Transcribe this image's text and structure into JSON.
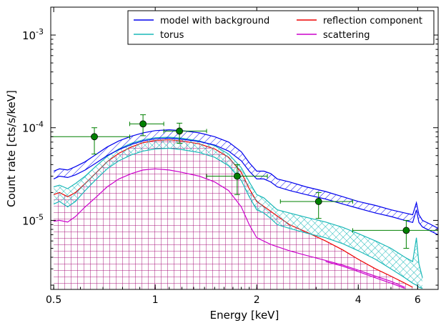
{
  "chart_data": {
    "type": "line",
    "xlabel": "Energy [keV]",
    "ylabel": "Count rate [cts/s/keV]",
    "xscale": "log",
    "yscale": "log",
    "xlim": [
      0.49,
      6.9
    ],
    "ylim": [
      1.8e-06,
      0.002
    ],
    "x_ticks": [
      {
        "value": 0.5,
        "label": "0.5"
      },
      {
        "value": 1,
        "label": "1"
      },
      {
        "value": 2,
        "label": "2"
      },
      {
        "value": 4,
        "label": "4"
      },
      {
        "value": 6,
        "label": "6"
      }
    ],
    "y_ticks": [
      {
        "value": 1e-05,
        "base": "10",
        "exp": "-5"
      },
      {
        "value": 0.0001,
        "base": "10",
        "exp": "-4"
      },
      {
        "value": 0.001,
        "base": "10",
        "exp": "-3"
      }
    ],
    "legend": {
      "location": "top-right",
      "columns": 2,
      "entries": [
        {
          "label": "model with background",
          "color": "#0000ee"
        },
        {
          "label": "torus",
          "color": "#1ab8b8"
        },
        {
          "label": "reflection component",
          "color": "#ee0000"
        },
        {
          "label": "scattering",
          "color": "#cc00cc"
        }
      ]
    },
    "series": [
      {
        "name": "model with background",
        "color": "#0000ee",
        "hatch": "diagonal",
        "x": [
          0.5,
          0.52,
          0.55,
          0.58,
          0.62,
          0.67,
          0.72,
          0.78,
          0.85,
          0.92,
          1.0,
          1.1,
          1.2,
          1.35,
          1.5,
          1.65,
          1.8,
          1.9,
          2.0,
          2.1,
          2.2,
          2.3,
          2.5,
          2.8,
          3.2,
          3.6,
          4.0,
          4.5,
          5.0,
          5.5,
          5.8,
          5.95,
          6.05,
          6.2,
          6.5,
          6.9
        ],
        "lower": [
          2.8e-05,
          3e-05,
          2.9e-05,
          3.1e-05,
          3.5e-05,
          4.2e-05,
          5e-05,
          5.8e-05,
          6.6e-05,
          7.2e-05,
          7.6e-05,
          7.7e-05,
          7.5e-05,
          7.1e-05,
          6.5e-05,
          5.6e-05,
          4.4e-05,
          3.4e-05,
          2.8e-05,
          2.8e-05,
          2.6e-05,
          2.3e-05,
          2.1e-05,
          1.9e-05,
          1.7e-05,
          1.5e-05,
          1.35e-05,
          1.2e-05,
          1.1e-05,
          1e-05,
          9.5e-06,
          1.3e-05,
          9.5e-06,
          8.5e-06,
          7.8e-06,
          7e-06
        ],
        "upper": [
          3.4e-05,
          3.6e-05,
          3.5e-05,
          3.8e-05,
          4.3e-05,
          5.2e-05,
          6.2e-05,
          7.2e-05,
          8.1e-05,
          8.8e-05,
          9.3e-05,
          9.5e-05,
          9.3e-05,
          8.8e-05,
          8e-05,
          7e-05,
          5.5e-05,
          4.2e-05,
          3.4e-05,
          3.4e-05,
          3.2e-05,
          2.8e-05,
          2.6e-05,
          2.3e-05,
          2.05e-05,
          1.8e-05,
          1.6e-05,
          1.45e-05,
          1.3e-05,
          1.2e-05,
          1.15e-05,
          1.55e-05,
          1.15e-05,
          1e-05,
          9.2e-06,
          8.2e-06
        ]
      },
      {
        "name": "torus",
        "color": "#1ab8b8",
        "hatch": "cross",
        "x": [
          0.5,
          0.52,
          0.55,
          0.58,
          0.62,
          0.67,
          0.72,
          0.78,
          0.85,
          0.92,
          1.0,
          1.1,
          1.2,
          1.35,
          1.5,
          1.65,
          1.8,
          1.9,
          2.0,
          2.1,
          2.2,
          2.3,
          2.5,
          2.8,
          3.2,
          3.6,
          4.0,
          4.5,
          5.0,
          5.5,
          5.8,
          5.95,
          6.05,
          6.2
        ],
        "lower": [
          1.5e-05,
          1.6e-05,
          1.4e-05,
          1.6e-05,
          2.1e-05,
          2.8e-05,
          3.6e-05,
          4.4e-05,
          5.1e-05,
          5.6e-05,
          5.9e-05,
          6e-05,
          5.8e-05,
          5.4e-05,
          4.8e-05,
          3.9e-05,
          2.7e-05,
          1.8e-05,
          1.3e-05,
          1.2e-05,
          1.05e-05,
          9e-06,
          8.2e-06,
          7.3e-06,
          6.5e-06,
          5.6e-06,
          4.7e-06,
          3.8e-06,
          3e-06,
          2.4e-06,
          2.1e-06,
          2e-06,
          1.9e-06,
          1.85e-06
        ],
        "upper": [
          2.3e-05,
          2.4e-05,
          2.2e-05,
          2.5e-05,
          3e-05,
          3.9e-05,
          4.9e-05,
          5.9e-05,
          6.8e-05,
          7.4e-05,
          7.8e-05,
          7.9e-05,
          7.7e-05,
          7.2e-05,
          6.4e-05,
          5.2e-05,
          3.7e-05,
          2.6e-05,
          1.9e-05,
          1.75e-05,
          1.5e-05,
          1.3e-05,
          1.2e-05,
          1.08e-05,
          9.6e-06,
          8.4e-06,
          7.2e-06,
          6e-06,
          5e-06,
          4e-06,
          3.6e-06,
          6.5e-06,
          3.4e-06,
          2.4e-06
        ]
      },
      {
        "name": "reflection component",
        "color": "#ee0000",
        "hatch": "grid",
        "x": [
          0.5,
          0.52,
          0.55,
          0.58,
          0.62,
          0.67,
          0.72,
          0.78,
          0.85,
          0.92,
          1.0,
          1.1,
          1.2,
          1.35,
          1.5,
          1.65,
          1.8,
          1.9,
          2.0,
          2.2,
          2.5,
          2.8,
          3.2,
          3.6,
          4.0,
          4.5,
          5.0,
          5.5,
          5.8
        ],
        "lower": [
          1.8e-06,
          1.8e-06,
          1.8e-06,
          1.8e-06,
          1.8e-06,
          1.8e-06,
          1.8e-06,
          1.8e-06,
          1.8e-06,
          1.8e-06,
          1.8e-06,
          1.8e-06,
          1.8e-06,
          1.8e-06,
          1.8e-06,
          1.8e-06,
          1.8e-06,
          1.8e-06,
          1.8e-06,
          1.8e-06,
          1.8e-06,
          1.8e-06,
          1.8e-06,
          1.8e-06,
          1.8e-06,
          1.8e-06,
          1.8e-06,
          1.8e-06,
          1.8e-06
        ],
        "upper": [
          1.9e-05,
          2e-05,
          1.8e-05,
          2e-05,
          2.5e-05,
          3.3e-05,
          4.3e-05,
          5.3e-05,
          6.2e-05,
          6.9e-05,
          7.3e-05,
          7.4e-05,
          7.2e-05,
          6.7e-05,
          5.9e-05,
          4.8e-05,
          3.3e-05,
          2.2e-05,
          1.6e-05,
          1.25e-05,
          9e-06,
          7.5e-06,
          6e-06,
          4.8e-06,
          3.8e-06,
          3e-06,
          2.5e-06,
          2.1e-06,
          1.9e-06
        ]
      },
      {
        "name": "scattering",
        "color": "#cc00cc",
        "x": [
          0.5,
          0.52,
          0.55,
          0.58,
          0.62,
          0.67,
          0.72,
          0.78,
          0.85,
          0.92,
          1.0,
          1.1,
          1.2,
          1.35,
          1.5,
          1.65,
          1.8,
          1.9,
          2.0,
          2.2,
          2.5,
          2.8,
          3.2,
          3.6,
          4.0,
          4.5,
          5.0,
          5.5
        ],
        "y": [
          9.8e-06,
          1e-05,
          9.6e-06,
          1.1e-05,
          1.4e-05,
          1.8e-05,
          2.3e-05,
          2.8e-05,
          3.2e-05,
          3.5e-05,
          3.6e-05,
          3.5e-05,
          3.3e-05,
          3e-05,
          2.6e-05,
          2.1e-05,
          1.4e-05,
          9e-06,
          6.5e-06,
          5.5e-06,
          4.7e-06,
          4.2e-06,
          3.7e-06,
          3.3e-06,
          2.9e-06,
          2.5e-06,
          2.2e-06,
          1.9e-06
        ],
        "lower_outline": [
          1.8e-06,
          1.8e-06,
          1.8e-06,
          1.8e-06,
          1.8e-06,
          1.8e-06,
          1.8e-06,
          1.8e-06,
          1.8e-06,
          1.8e-06,
          1.8e-06,
          1.8e-06,
          1.8e-06,
          1.8e-06,
          1.8e-06,
          1.8e-06,
          1.8e-06,
          1.8e-06,
          1.8e-06,
          1.8e-06,
          1.8e-06,
          1.8e-06,
          3.6e-06,
          3.2e-06,
          2.8e-06,
          2.4e-06,
          2.1e-06,
          1.85e-06
        ]
      }
    ],
    "data_points": {
      "color": "#008000",
      "points": [
        {
          "x": 0.66,
          "y": 8e-05,
          "xerr": [
            0.49,
            0.84
          ],
          "yerr": [
            5.2e-05,
            0.0001
          ]
        },
        {
          "x": 0.92,
          "y": 0.00011,
          "xerr": [
            0.84,
            1.06
          ],
          "yerr": [
            8.2e-05,
            0.000138
          ]
        },
        {
          "x": 1.18,
          "y": 9.2e-05,
          "xerr": [
            1.06,
            1.42
          ],
          "yerr": [
            6.8e-05,
            0.000112
          ]
        },
        {
          "x": 1.75,
          "y": 3e-05,
          "xerr": [
            1.42,
            2.15
          ],
          "yerr": [
            1.9e-05,
            4e-05
          ]
        },
        {
          "x": 3.05,
          "y": 1.6e-05,
          "xerr": [
            2.35,
            3.85
          ],
          "yerr": [
            1.05e-05,
            2e-05
          ]
        },
        {
          "x": 5.55,
          "y": 7.8e-06,
          "xerr": [
            3.85,
            6.9
          ],
          "yerr": [
            5e-06,
            1e-05
          ]
        }
      ]
    }
  }
}
